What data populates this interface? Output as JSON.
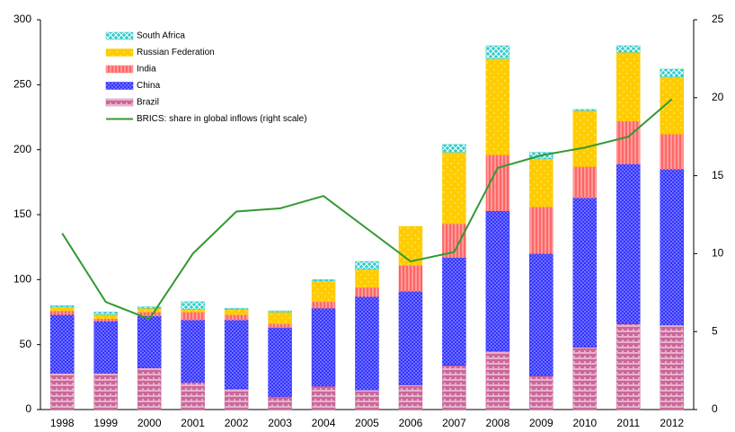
{
  "chart_data": {
    "type": "bar",
    "categories": [
      "1998",
      "1999",
      "2000",
      "2001",
      "2002",
      "2003",
      "2004",
      "2005",
      "2006",
      "2007",
      "2008",
      "2009",
      "2010",
      "2011",
      "2012"
    ],
    "series": [
      {
        "name": "Brazil",
        "color": "#cc6699",
        "values": [
          28,
          28,
          32,
          21,
          16,
          10,
          18,
          15,
          19,
          34,
          45,
          26,
          48,
          66,
          65
        ]
      },
      {
        "name": "China",
        "color": "#3333ff",
        "values": [
          45,
          40,
          40,
          48,
          53,
          53,
          60,
          72,
          72,
          83,
          108,
          94,
          115,
          123,
          120
        ]
      },
      {
        "name": "India",
        "color": "#ff8080",
        "values": [
          3,
          2,
          3,
          6,
          4,
          3,
          5,
          7,
          20,
          26,
          43,
          36,
          24,
          33,
          27
        ]
      },
      {
        "name": "Russian Federation",
        "color": "#ffcc00",
        "values": [
          3,
          3,
          3,
          2,
          4,
          9,
          16,
          14,
          30,
          55,
          74,
          37,
          43,
          53,
          44
        ]
      },
      {
        "name": "South Africa",
        "color": "#33cccc",
        "values": [
          1,
          2,
          1,
          6,
          1,
          1,
          1,
          6,
          0,
          6,
          10,
          5,
          1,
          5,
          6
        ]
      },
      {
        "name": "BRICS: share in global inflows (right scale)",
        "color": "#339933",
        "axis": "y2",
        "type": "line",
        "values": [
          11.3,
          6.9,
          5.8,
          10.0,
          12.7,
          12.9,
          13.7,
          11.6,
          9.5,
          10.1,
          15.5,
          16.3,
          16.8,
          17.5,
          19.9
        ]
      }
    ],
    "ylim": [
      0,
      300
    ],
    "yticks": [
      0,
      50,
      100,
      150,
      200,
      250,
      300
    ],
    "y2lim": [
      0,
      25
    ],
    "y2ticks": [
      0,
      5,
      10,
      15,
      20,
      25
    ]
  }
}
